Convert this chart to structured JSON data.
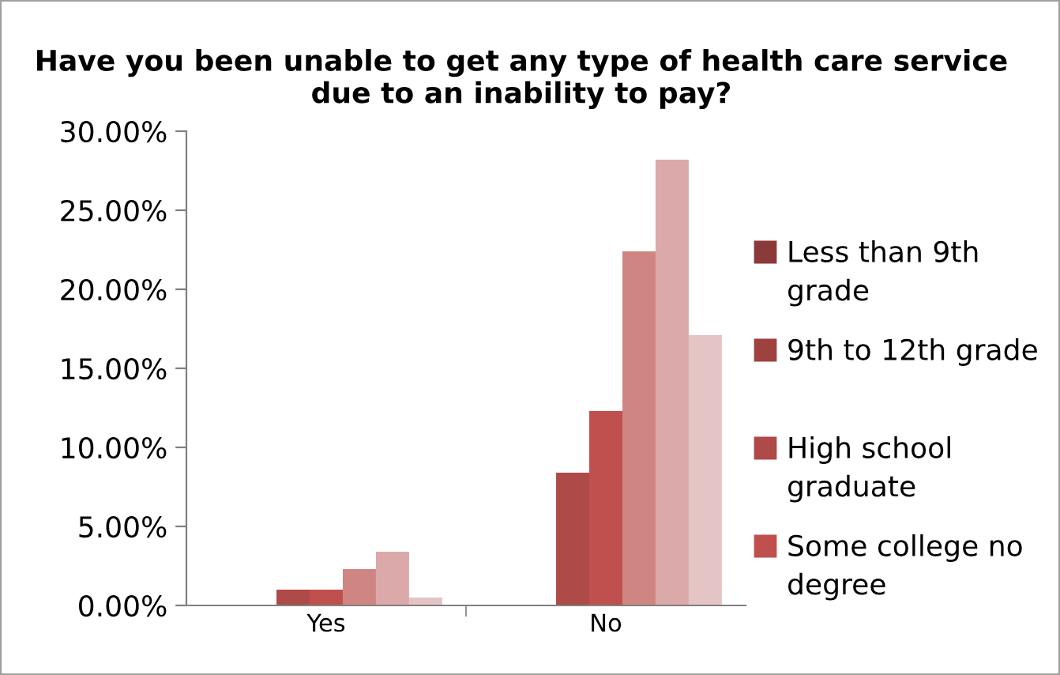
{
  "chart_data": {
    "type": "bar",
    "title": "Have you been unable to get any type of health care service due to an inability to pay?",
    "categories": [
      "Yes",
      "No"
    ],
    "series": [
      {
        "name": "Less than 9th grade",
        "color": "#8b3a3a",
        "values": [
          0,
          0
        ]
      },
      {
        "name": "9th to 12th grade",
        "color": "#9e4240",
        "values": [
          0,
          0
        ]
      },
      {
        "name": "High school graduate",
        "color": "#ae4a48",
        "values": [
          1.0,
          8.4
        ]
      },
      {
        "name": "Some college no degree",
        "color": "#c0504d",
        "values": [
          1.0,
          12.3
        ]
      },
      {
        "color": "#cf8683",
        "values": [
          2.3,
          22.4
        ]
      },
      {
        "color": "#dba9a9",
        "values": [
          3.4,
          28.2
        ]
      },
      {
        "color": "#e4c4c4",
        "values": [
          0.5,
          17.1
        ]
      }
    ],
    "ylim": [
      0,
      30
    ],
    "yticks": [
      {
        "value": 0,
        "label": "0.00%"
      },
      {
        "value": 5,
        "label": "5.00%"
      },
      {
        "value": 10,
        "label": "10.00%"
      },
      {
        "value": 15,
        "label": "15.00%"
      },
      {
        "value": 20,
        "label": "20.00%"
      },
      {
        "value": 25,
        "label": "25.00%"
      },
      {
        "value": 30,
        "label": "30.00%"
      }
    ],
    "grid": false,
    "legend": "right"
  }
}
